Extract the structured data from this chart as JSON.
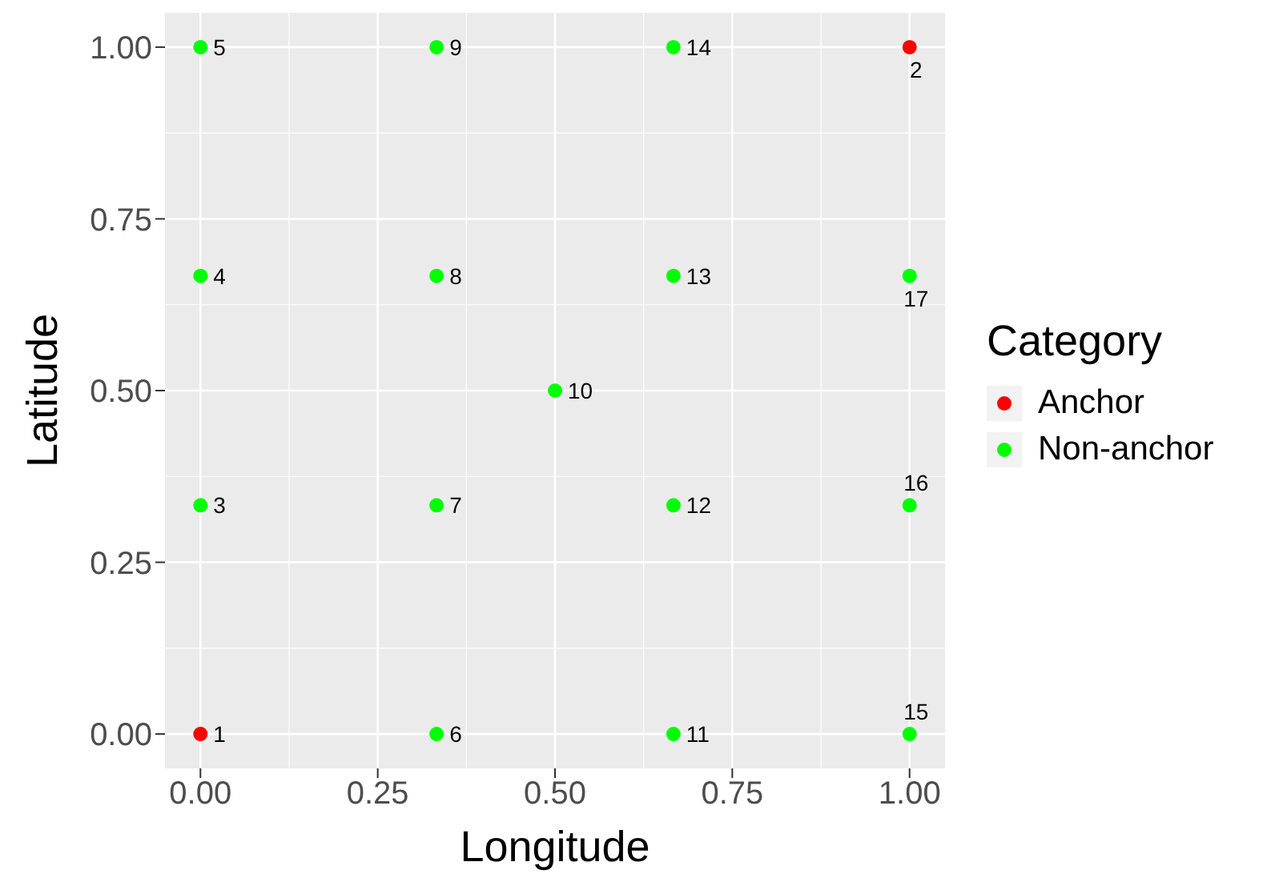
{
  "chart_data": {
    "type": "scatter",
    "xlabel": "Longitude",
    "ylabel": "Latitude",
    "legend_title": "Category",
    "legend": "right",
    "grid": true,
    "marker": "circle",
    "xlim": [
      -0.05,
      1.05
    ],
    "ylim": [
      -0.05,
      1.05
    ],
    "xticks": [
      {
        "value": 0,
        "label": "0.00"
      },
      {
        "value": 0.25,
        "label": "0.25"
      },
      {
        "value": 0.5,
        "label": "0.50"
      },
      {
        "value": 0.75,
        "label": "0.75"
      },
      {
        "value": 1,
        "label": "1.00"
      }
    ],
    "yticks": [
      {
        "value": 0,
        "label": "0.00"
      },
      {
        "value": 0.25,
        "label": "0.25"
      },
      {
        "value": 0.5,
        "label": "0.50"
      },
      {
        "value": 0.75,
        "label": "0.75"
      },
      {
        "value": 1,
        "label": "1.00"
      }
    ],
    "series": [
      {
        "name": "Anchor",
        "color": "#ff0000",
        "x": [
          0,
          1
        ],
        "values": [
          0,
          1
        ]
      },
      {
        "name": "Non-anchor",
        "color": "#00ff00",
        "x": [
          0,
          0,
          0,
          0.333,
          0.333,
          0.333,
          0.333,
          0.5,
          0.667,
          0.667,
          0.667,
          0.667,
          1,
          1,
          1
        ],
        "values": [
          0.333,
          0.667,
          1,
          0,
          0.333,
          0.667,
          1,
          0.5,
          0,
          0.333,
          0.667,
          1,
          0,
          0.333,
          0.667
        ]
      }
    ],
    "annotations": [
      {
        "text": "1",
        "x": 0,
        "y": 0
      },
      {
        "text": "2",
        "x": 1,
        "y": 1
      },
      {
        "text": "3",
        "x": 0,
        "y": 0.333
      },
      {
        "text": "4",
        "x": 0,
        "y": 0.667
      },
      {
        "text": "5",
        "x": 0,
        "y": 1
      },
      {
        "text": "6",
        "x": 0.333,
        "y": 0
      },
      {
        "text": "7",
        "x": 0.333,
        "y": 0.333
      },
      {
        "text": "8",
        "x": 0.333,
        "y": 0.667
      },
      {
        "text": "9",
        "x": 0.333,
        "y": 1
      },
      {
        "text": "10",
        "x": 0.5,
        "y": 0.5
      },
      {
        "text": "11",
        "x": 0.667,
        "y": 0
      },
      {
        "text": "12",
        "x": 0.667,
        "y": 0.333
      },
      {
        "text": "13",
        "x": 0.667,
        "y": 0.667
      },
      {
        "text": "14",
        "x": 0.667,
        "y": 1
      },
      {
        "text": "15",
        "x": 1,
        "y": 0
      },
      {
        "text": "16",
        "x": 1,
        "y": 0.333
      },
      {
        "text": "17",
        "x": 1,
        "y": 0.667
      }
    ]
  }
}
